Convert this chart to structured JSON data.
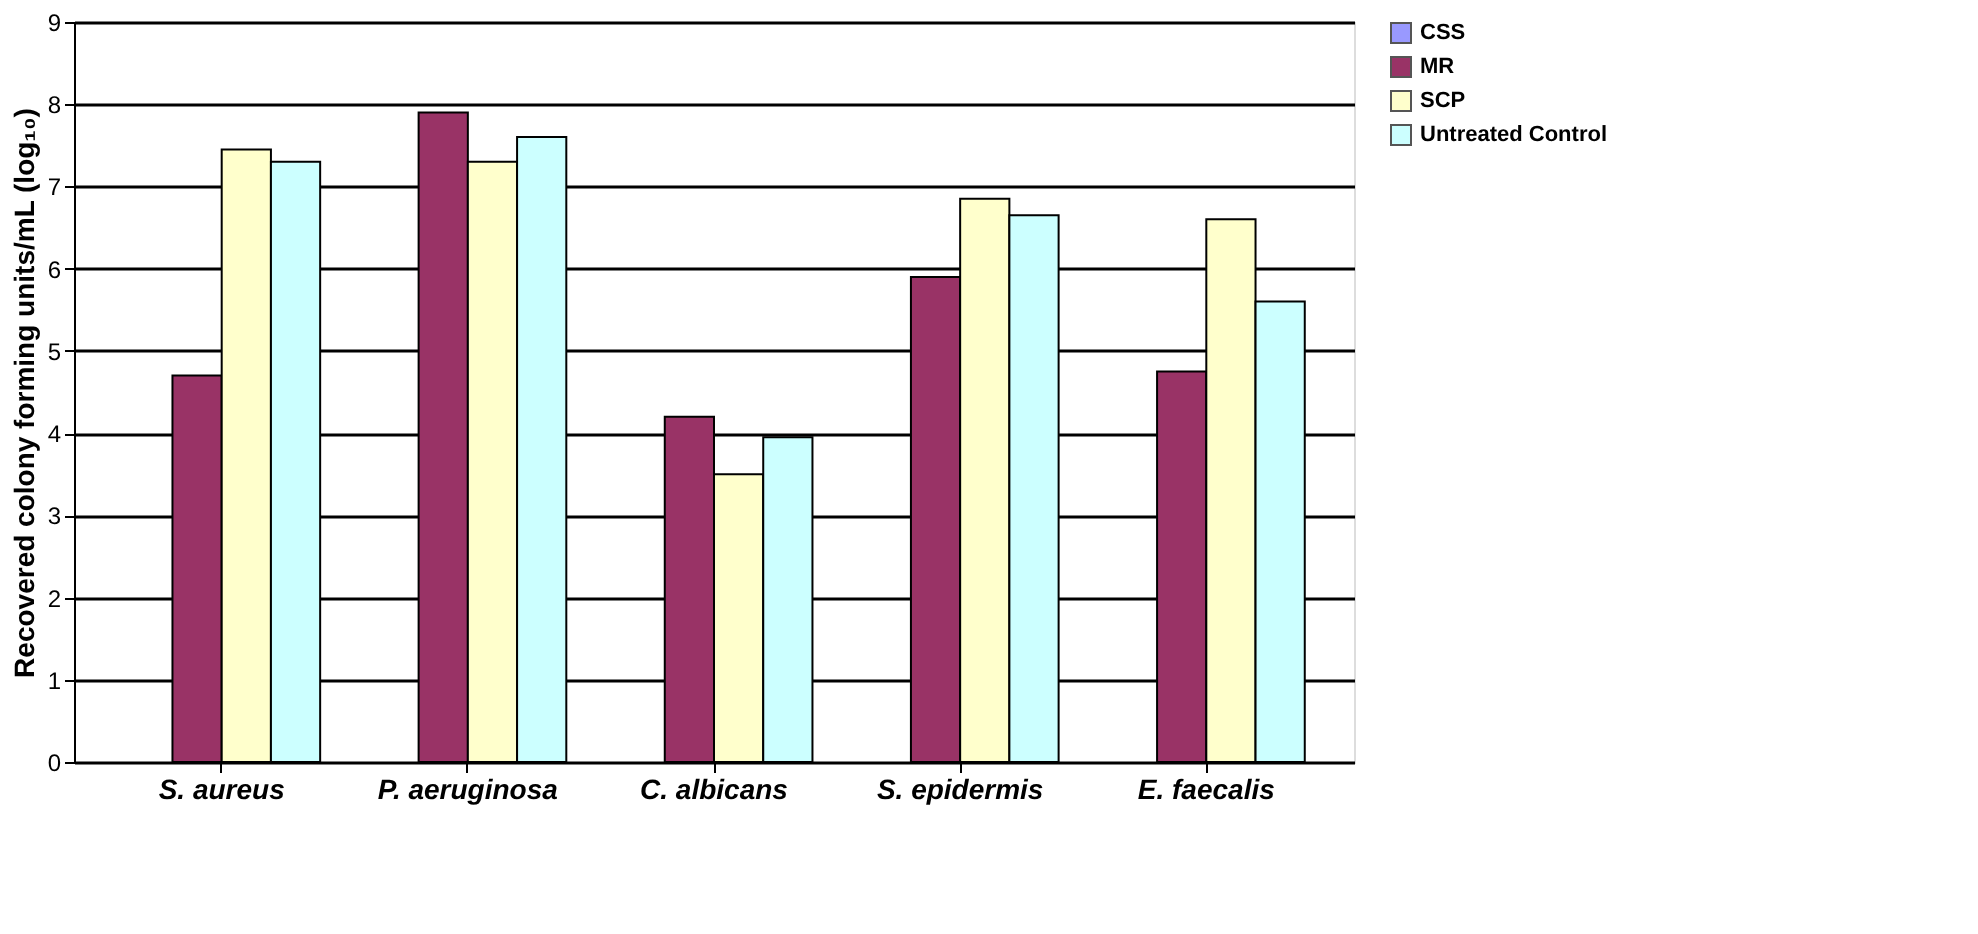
{
  "chart_data": {
    "type": "bar",
    "ylabel": "Recovered colony forming units/mL (log₁₀)",
    "categories": [
      "S. aureus",
      "P. aeruginosa",
      "C. albicans",
      "S. epidermis",
      "E. faecalis"
    ],
    "series": [
      {
        "name": "CSS",
        "color": "#9999ff",
        "values": [
          0,
          0,
          0,
          0,
          0
        ]
      },
      {
        "name": "MR",
        "color": "#993366",
        "values": [
          4.7,
          7.9,
          4.2,
          5.9,
          4.75
        ]
      },
      {
        "name": "SCP",
        "color": "#ffffcc",
        "values": [
          7.45,
          7.3,
          3.5,
          6.85,
          6.6
        ]
      },
      {
        "name": "Untreated Control",
        "color": "#ccffff",
        "values": [
          7.3,
          7.6,
          3.95,
          6.65,
          5.6
        ]
      }
    ],
    "ylim": [
      0,
      9
    ],
    "yticks": [
      0,
      1,
      2,
      3,
      4,
      5,
      6,
      7,
      8,
      9
    ],
    "grid": "y",
    "legend": "right"
  }
}
